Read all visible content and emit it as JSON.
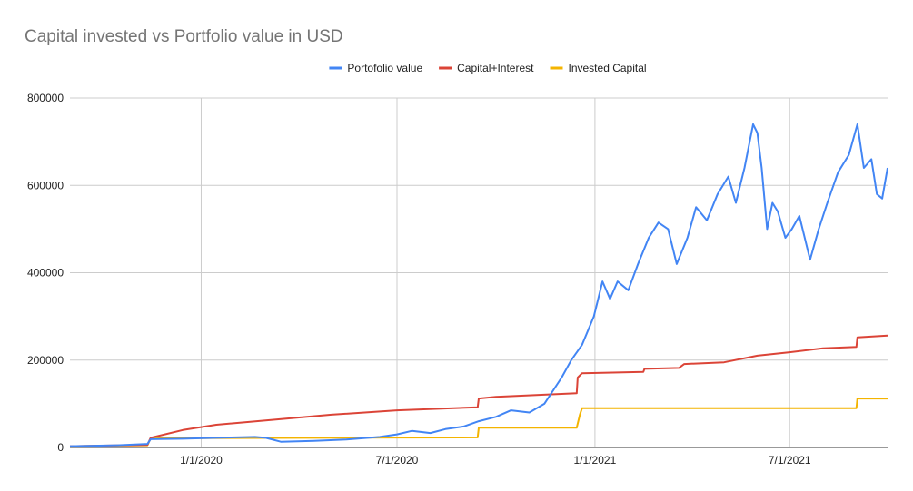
{
  "chart_data": {
    "type": "line",
    "title": "Capital invested vs Portfolio value in USD",
    "xlabel": "",
    "ylabel": "",
    "x_start": "2019-09-01",
    "x_end": "2021-09-30",
    "ylim": [
      0,
      800000
    ],
    "yticks": [
      0,
      200000,
      400000,
      600000,
      800000
    ],
    "ytick_labels": [
      "0",
      "200000",
      "400000",
      "600000",
      "800000"
    ],
    "xticks": [
      "2020-01-01",
      "2020-07-01",
      "2021-01-01",
      "2021-07-01"
    ],
    "xtick_labels": [
      "1/1/2020",
      "7/1/2020",
      "1/1/2021",
      "7/1/2021"
    ],
    "grid": true,
    "legend_position": "top",
    "series": [
      {
        "name": "Portofolio value",
        "color": "#4285f4",
        "points": [
          [
            "2019-09-01",
            3000
          ],
          [
            "2019-10-15",
            5000
          ],
          [
            "2019-11-12",
            8000
          ],
          [
            "2019-11-15",
            19000
          ],
          [
            "2019-12-15",
            20000
          ],
          [
            "2020-01-15",
            22000
          ],
          [
            "2020-02-20",
            24000
          ],
          [
            "2020-03-01",
            22000
          ],
          [
            "2020-03-15",
            13000
          ],
          [
            "2020-04-15",
            15000
          ],
          [
            "2020-05-15",
            18000
          ],
          [
            "2020-06-15",
            24000
          ],
          [
            "2020-07-01",
            30000
          ],
          [
            "2020-07-15",
            38000
          ],
          [
            "2020-08-01",
            33000
          ],
          [
            "2020-08-15",
            42000
          ],
          [
            "2020-09-01",
            48000
          ],
          [
            "2020-09-15",
            60000
          ],
          [
            "2020-10-01",
            70000
          ],
          [
            "2020-10-15",
            85000
          ],
          [
            "2020-11-01",
            80000
          ],
          [
            "2020-11-15",
            100000
          ],
          [
            "2020-12-01",
            160000
          ],
          [
            "2020-12-10",
            200000
          ],
          [
            "2020-12-20",
            235000
          ],
          [
            "2020-12-31",
            300000
          ],
          [
            "2021-01-08",
            380000
          ],
          [
            "2021-01-15",
            340000
          ],
          [
            "2021-01-22",
            380000
          ],
          [
            "2021-02-01",
            360000
          ],
          [
            "2021-02-10",
            420000
          ],
          [
            "2021-02-20",
            480000
          ],
          [
            "2021-03-01",
            515000
          ],
          [
            "2021-03-10",
            500000
          ],
          [
            "2021-03-18",
            420000
          ],
          [
            "2021-03-28",
            480000
          ],
          [
            "2021-04-05",
            550000
          ],
          [
            "2021-04-15",
            520000
          ],
          [
            "2021-04-25",
            580000
          ],
          [
            "2021-05-05",
            620000
          ],
          [
            "2021-05-12",
            560000
          ],
          [
            "2021-05-20",
            640000
          ],
          [
            "2021-05-28",
            740000
          ],
          [
            "2021-06-01",
            720000
          ],
          [
            "2021-06-05",
            640000
          ],
          [
            "2021-06-10",
            500000
          ],
          [
            "2021-06-15",
            560000
          ],
          [
            "2021-06-20",
            540000
          ],
          [
            "2021-06-27",
            480000
          ],
          [
            "2021-07-03",
            500000
          ],
          [
            "2021-07-10",
            530000
          ],
          [
            "2021-07-20",
            430000
          ],
          [
            "2021-07-28",
            500000
          ],
          [
            "2021-08-05",
            560000
          ],
          [
            "2021-08-15",
            630000
          ],
          [
            "2021-08-25",
            670000
          ],
          [
            "2021-09-02",
            740000
          ],
          [
            "2021-09-08",
            640000
          ],
          [
            "2021-09-15",
            660000
          ],
          [
            "2021-09-20",
            580000
          ],
          [
            "2021-09-25",
            570000
          ],
          [
            "2021-09-30",
            640000
          ]
        ]
      },
      {
        "name": "Capital+Interest",
        "color": "#db4437",
        "points": [
          [
            "2019-09-01",
            3000
          ],
          [
            "2019-11-12",
            6000
          ],
          [
            "2019-11-15",
            22000
          ],
          [
            "2019-12-15",
            40000
          ],
          [
            "2020-01-15",
            52000
          ],
          [
            "2020-03-01",
            62000
          ],
          [
            "2020-05-01",
            75000
          ],
          [
            "2020-07-01",
            85000
          ],
          [
            "2020-09-14",
            92000
          ],
          [
            "2020-09-15",
            112000
          ],
          [
            "2020-10-01",
            116000
          ],
          [
            "2020-12-15",
            124000
          ],
          [
            "2020-12-16",
            160000
          ],
          [
            "2020-12-20",
            170000
          ],
          [
            "2021-02-15",
            173000
          ],
          [
            "2021-02-16",
            180000
          ],
          [
            "2021-03-20",
            182000
          ],
          [
            "2021-03-25",
            191000
          ],
          [
            "2021-05-01",
            195000
          ],
          [
            "2021-06-01",
            210000
          ],
          [
            "2021-07-01",
            218000
          ],
          [
            "2021-08-01",
            227000
          ],
          [
            "2021-09-01",
            230000
          ],
          [
            "2021-09-02",
            252000
          ],
          [
            "2021-09-30",
            256000
          ]
        ]
      },
      {
        "name": "Invested Capital",
        "color": "#f4b400",
        "points": [
          [
            "2019-09-01",
            3000
          ],
          [
            "2019-11-12",
            5000
          ],
          [
            "2019-11-15",
            21000
          ],
          [
            "2020-09-14",
            23000
          ],
          [
            "2020-09-15",
            45000
          ],
          [
            "2020-12-15",
            45000
          ],
          [
            "2020-12-18",
            75000
          ],
          [
            "2020-12-20",
            90000
          ],
          [
            "2021-09-01",
            90000
          ],
          [
            "2021-09-02",
            112000
          ],
          [
            "2021-09-30",
            112000
          ]
        ]
      }
    ]
  }
}
